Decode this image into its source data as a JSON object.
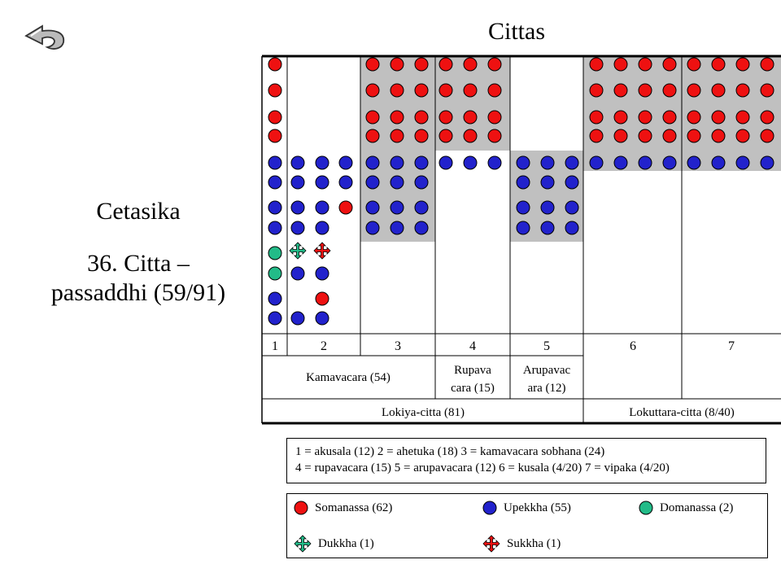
{
  "title": "Cittas",
  "side": {
    "line1": "Cetasika",
    "line2": "36. Citta –",
    "line3": "passaddhi (59/91)"
  },
  "columns": [
    "1",
    "2",
    "3",
    "4",
    "5",
    "6",
    "7"
  ],
  "row2": {
    "kama": "Kamavacara (54)",
    "rupa1": "Rupava",
    "rupa2": "cara (15)",
    "arupa1": "Arupavac",
    "arupa2": "ara (12)"
  },
  "row3": {
    "lokiya": "Lokiya-citta (81)",
    "lokuttara": "Lokuttara-citta (8/40)"
  },
  "legend_text": {
    "line1": "1 = akusala (12) 2 = ahetuka (18) 3 = kamavacara sobhana (24)",
    "line2": "4 = rupavacara (15) 5 = arupavacara (12) 6 = kusala (4/20) 7 = vipaka (4/20)"
  },
  "legend_items": {
    "somanassa": "Somanassa (62)",
    "upekkha": "Upekkha (55)",
    "domanassa": "Domanassa (2)",
    "dukkha": "Dukkha (1)",
    "sukkha": "Sukkha (1)"
  },
  "colors": {
    "somanassa": "#ee1111",
    "upekkha": "#2222cc",
    "domanassa": "#22bb88",
    "highlight": "#c0c0c0"
  },
  "dots": {
    "somanassa": [
      [
        338,
        79
      ],
      [
        338,
        111
      ],
      [
        338,
        144
      ],
      [
        338,
        167
      ],
      [
        458,
        79
      ],
      [
        488,
        79
      ],
      [
        518,
        79
      ],
      [
        548,
        79
      ],
      [
        578,
        79
      ],
      [
        608,
        79
      ],
      [
        458,
        111
      ],
      [
        488,
        111
      ],
      [
        518,
        111
      ],
      [
        548,
        111
      ],
      [
        578,
        111
      ],
      [
        608,
        111
      ],
      [
        458,
        144
      ],
      [
        488,
        144
      ],
      [
        518,
        144
      ],
      [
        548,
        144
      ],
      [
        578,
        144
      ],
      [
        608,
        144
      ],
      [
        458,
        167
      ],
      [
        488,
        167
      ],
      [
        518,
        167
      ],
      [
        548,
        167
      ],
      [
        578,
        167
      ],
      [
        608,
        167
      ],
      [
        733,
        79
      ],
      [
        763,
        79
      ],
      [
        793,
        79
      ],
      [
        823,
        79
      ],
      [
        853,
        79
      ],
      [
        883,
        79
      ],
      [
        913,
        79
      ],
      [
        943,
        79
      ],
      [
        733,
        111
      ],
      [
        763,
        111
      ],
      [
        793,
        111
      ],
      [
        823,
        111
      ],
      [
        853,
        111
      ],
      [
        883,
        111
      ],
      [
        913,
        111
      ],
      [
        943,
        111
      ],
      [
        733,
        144
      ],
      [
        763,
        144
      ],
      [
        793,
        144
      ],
      [
        823,
        144
      ],
      [
        853,
        144
      ],
      [
        883,
        144
      ],
      [
        913,
        144
      ],
      [
        943,
        144
      ],
      [
        733,
        167
      ],
      [
        763,
        167
      ],
      [
        793,
        167
      ],
      [
        823,
        167
      ],
      [
        853,
        167
      ],
      [
        883,
        167
      ],
      [
        913,
        167
      ],
      [
        943,
        167
      ],
      [
        425,
        255
      ],
      [
        396,
        367
      ]
    ],
    "upekkha": [
      [
        338,
        200
      ],
      [
        366,
        200
      ],
      [
        396,
        200
      ],
      [
        425,
        200
      ],
      [
        458,
        200
      ],
      [
        488,
        200
      ],
      [
        518,
        200
      ],
      [
        548,
        200
      ],
      [
        578,
        200
      ],
      [
        608,
        200
      ],
      [
        643,
        200
      ],
      [
        673,
        200
      ],
      [
        703,
        200
      ],
      [
        733,
        200
      ],
      [
        763,
        200
      ],
      [
        793,
        200
      ],
      [
        823,
        200
      ],
      [
        853,
        200
      ],
      [
        883,
        200
      ],
      [
        913,
        200
      ],
      [
        943,
        200
      ],
      [
        338,
        224
      ],
      [
        366,
        224
      ],
      [
        396,
        224
      ],
      [
        425,
        224
      ],
      [
        458,
        224
      ],
      [
        488,
        224
      ],
      [
        518,
        224
      ],
      [
        643,
        224
      ],
      [
        673,
        224
      ],
      [
        703,
        224
      ],
      [
        338,
        255
      ],
      [
        366,
        255
      ],
      [
        396,
        255
      ],
      [
        458,
        255
      ],
      [
        488,
        255
      ],
      [
        518,
        255
      ],
      [
        643,
        255
      ],
      [
        673,
        255
      ],
      [
        703,
        255
      ],
      [
        338,
        280
      ],
      [
        366,
        280
      ],
      [
        396,
        280
      ],
      [
        458,
        280
      ],
      [
        488,
        280
      ],
      [
        518,
        280
      ],
      [
        643,
        280
      ],
      [
        673,
        280
      ],
      [
        703,
        280
      ],
      [
        366,
        336
      ],
      [
        396,
        336
      ],
      [
        338,
        367
      ],
      [
        338,
        391
      ],
      [
        366,
        391
      ],
      [
        396,
        391
      ]
    ],
    "domanassa": [
      [
        338,
        311
      ],
      [
        338,
        336
      ]
    ],
    "dukkha": [
      [
        366,
        308
      ]
    ],
    "sukkha": [
      [
        396,
        308
      ]
    ]
  }
}
